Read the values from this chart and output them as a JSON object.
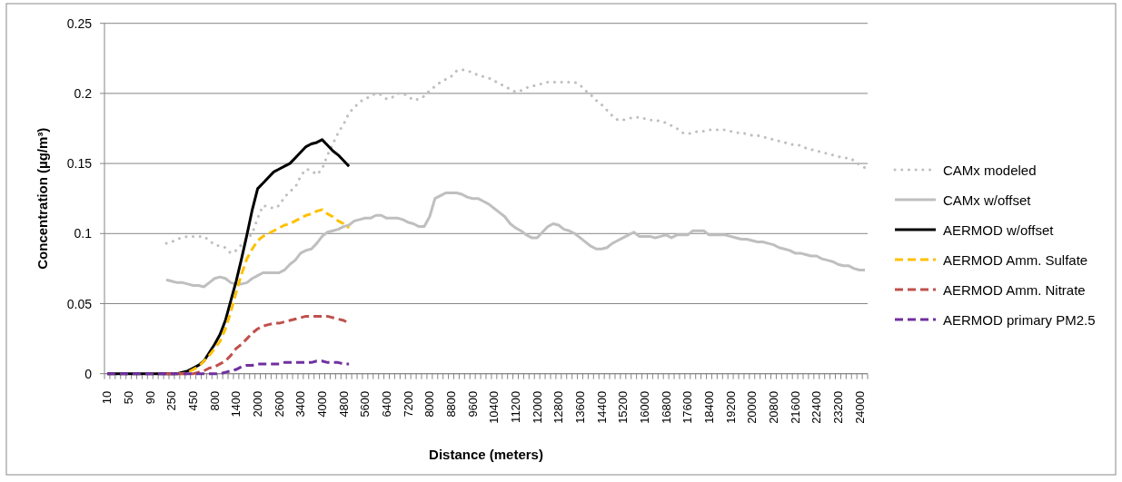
{
  "chart_data": {
    "type": "line",
    "xlabel": "Distance (meters)",
    "ylabel": "Concentration (µg/m³)",
    "categories": [
      "10",
      null,
      null,
      null,
      "50",
      null,
      null,
      null,
      "90",
      null,
      null,
      null,
      "250",
      null,
      null,
      null,
      "450",
      null,
      null,
      null,
      "800",
      null,
      null,
      null,
      "1400",
      null,
      null,
      null,
      "2000",
      null,
      null,
      null,
      "2600",
      null,
      null,
      null,
      "3400",
      null,
      null,
      null,
      "4000",
      null,
      null,
      null,
      "4800",
      null,
      null,
      null,
      "5600",
      null,
      null,
      null,
      "6400",
      null,
      null,
      null,
      "7200",
      null,
      null,
      null,
      "8000",
      null,
      null,
      null,
      "8800",
      null,
      null,
      null,
      "9600",
      null,
      null,
      null,
      "10400",
      null,
      null,
      null,
      "11200",
      null,
      null,
      null,
      "12000",
      null,
      null,
      null,
      "12800",
      null,
      null,
      null,
      "13600",
      null,
      null,
      null,
      "14400",
      null,
      null,
      null,
      "15200",
      null,
      null,
      null,
      "16000",
      null,
      null,
      null,
      "16800",
      null,
      null,
      null,
      "17600",
      null,
      null,
      null,
      "18400",
      null,
      null,
      null,
      "19200",
      null,
      null,
      null,
      "20000",
      null,
      null,
      null,
      "20800",
      null,
      null,
      null,
      "21600",
      null,
      null,
      null,
      "22400",
      null,
      null,
      null,
      "23200",
      null,
      null,
      null,
      "24000",
      null
    ],
    "ylim": [
      0,
      0.25
    ],
    "yticks": [
      0,
      0.05,
      0.1,
      0.15,
      0.2,
      0.25
    ],
    "grid": "y",
    "legend": "right",
    "series": [
      {
        "name": "CAMx modeled",
        "color": "#bfbfbf",
        "line_style": "dotted",
        "values": [
          null,
          null,
          null,
          null,
          null,
          null,
          null,
          null,
          null,
          null,
          null,
          0.093,
          0.094,
          0.096,
          0.097,
          0.098,
          0.098,
          0.098,
          0.098,
          0.095,
          0.092,
          0.091,
          0.09,
          0.086,
          0.088,
          0.092,
          0.096,
          0.1,
          0.111,
          0.12,
          0.119,
          0.118,
          0.12,
          0.126,
          0.13,
          0.133,
          0.141,
          0.146,
          0.145,
          0.142,
          0.146,
          0.156,
          0.164,
          0.172,
          0.178,
          0.186,
          0.19,
          0.194,
          0.196,
          0.198,
          0.2,
          0.199,
          0.196,
          0.197,
          0.2,
          0.2,
          0.198,
          0.195,
          0.196,
          0.198,
          0.202,
          0.205,
          0.208,
          0.21,
          0.212,
          0.216,
          0.217,
          0.216,
          0.215,
          0.213,
          0.212,
          0.211,
          0.209,
          0.207,
          0.205,
          0.203,
          0.201,
          0.202,
          0.204,
          0.205,
          0.206,
          0.207,
          0.208,
          0.208,
          0.208,
          0.208,
          0.208,
          0.208,
          0.206,
          0.202,
          0.199,
          0.195,
          0.192,
          0.188,
          0.184,
          0.181,
          0.181,
          0.182,
          0.183,
          0.183,
          0.182,
          0.181,
          0.181,
          0.18,
          0.179,
          0.177,
          0.175,
          0.172,
          0.171,
          0.172,
          0.173,
          0.173,
          0.174,
          0.174,
          0.174,
          0.174,
          0.173,
          0.172,
          0.172,
          0.171,
          0.17,
          0.17,
          0.169,
          0.168,
          0.167,
          0.166,
          0.165,
          0.164,
          0.163,
          0.163,
          0.161,
          0.16,
          0.159,
          0.158,
          0.157,
          0.156,
          0.155,
          0.154,
          0.154,
          0.152,
          0.149,
          0.147
        ]
      },
      {
        "name": "CAMx w/offset",
        "color": "#bfbfbf",
        "line_style": "solid",
        "values": [
          null,
          null,
          null,
          null,
          null,
          null,
          null,
          null,
          null,
          null,
          null,
          0.067,
          0.066,
          0.065,
          0.065,
          0.064,
          0.063,
          0.063,
          0.062,
          0.065,
          0.068,
          0.069,
          0.068,
          0.065,
          0.064,
          0.064,
          0.065,
          0.068,
          0.07,
          0.072,
          0.072,
          0.072,
          0.072,
          0.074,
          0.078,
          0.081,
          0.086,
          0.088,
          0.089,
          0.093,
          0.098,
          0.101,
          0.102,
          0.103,
          0.105,
          0.106,
          0.109,
          0.11,
          0.111,
          0.111,
          0.113,
          0.113,
          0.111,
          0.111,
          0.111,
          0.11,
          0.108,
          0.107,
          0.105,
          0.105,
          0.112,
          0.125,
          0.127,
          0.129,
          0.129,
          0.129,
          0.128,
          0.126,
          0.125,
          0.125,
          0.123,
          0.121,
          0.118,
          0.115,
          0.112,
          0.107,
          0.104,
          0.102,
          0.099,
          0.097,
          0.097,
          0.101,
          0.105,
          0.107,
          0.106,
          0.103,
          0.102,
          0.1,
          0.097,
          0.094,
          0.091,
          0.089,
          0.089,
          0.09,
          0.093,
          0.095,
          0.097,
          0.099,
          0.101,
          0.098,
          0.098,
          0.098,
          0.097,
          0.098,
          0.099,
          0.097,
          0.099,
          0.099,
          0.099,
          0.102,
          0.102,
          0.102,
          0.099,
          0.099,
          0.099,
          0.099,
          0.098,
          0.097,
          0.096,
          0.096,
          0.095,
          0.094,
          0.094,
          0.093,
          0.092,
          0.09,
          0.089,
          0.088,
          0.086,
          0.086,
          0.085,
          0.084,
          0.084,
          0.082,
          0.081,
          0.08,
          0.078,
          0.077,
          0.077,
          0.075,
          0.074,
          0.074
        ]
      },
      {
        "name": "AERMOD w/offset",
        "color": "#000000",
        "line_style": "solid",
        "values": [
          0,
          0,
          0,
          0,
          0,
          0,
          0,
          0,
          0,
          0,
          0,
          0,
          0,
          0,
          0.001,
          0.002,
          0.004,
          0.006,
          0.009,
          0.015,
          0.021,
          0.028,
          0.038,
          0.052,
          0.066,
          0.082,
          0.099,
          0.117,
          0.132,
          0.136,
          0.14,
          0.144,
          0.146,
          0.148,
          0.15,
          0.154,
          0.158,
          0.162,
          0.164,
          0.165,
          0.167,
          0.163,
          0.159,
          0.156,
          0.152,
          0.148,
          null,
          null,
          null,
          null,
          null,
          null,
          null,
          null,
          null,
          null,
          null,
          null,
          null,
          null,
          null,
          null,
          null,
          null,
          null,
          null,
          null,
          null,
          null,
          null,
          null,
          null,
          null,
          null,
          null,
          null,
          null,
          null,
          null,
          null,
          null,
          null,
          null,
          null,
          null,
          null,
          null,
          null,
          null,
          null,
          null,
          null,
          null,
          null,
          null,
          null,
          null,
          null,
          null,
          null,
          null,
          null,
          null,
          null,
          null,
          null,
          null,
          null,
          null,
          null,
          null,
          null,
          null,
          null,
          null,
          null,
          null,
          null,
          null,
          null,
          null,
          null,
          null,
          null,
          null,
          null,
          null,
          null,
          null,
          null,
          null,
          null,
          null,
          null,
          null,
          null,
          null,
          null,
          null,
          null,
          null,
          null
        ]
      },
      {
        "name": "AERMOD Amm. Sulfate",
        "color": "#ffc000",
        "line_style": "dashed",
        "values": [
          null,
          null,
          null,
          null,
          null,
          null,
          null,
          null,
          null,
          null,
          null,
          null,
          null,
          0,
          0,
          0.001,
          0.003,
          0.005,
          0.009,
          0.013,
          0.018,
          0.023,
          0.032,
          0.044,
          0.058,
          0.071,
          0.082,
          0.089,
          0.095,
          0.098,
          0.1,
          0.102,
          0.104,
          0.106,
          0.107,
          0.109,
          0.111,
          0.113,
          0.114,
          0.116,
          0.117,
          0.114,
          0.112,
          0.109,
          0.107,
          0.104,
          null,
          null,
          null,
          null,
          null,
          null,
          null,
          null,
          null,
          null,
          null,
          null,
          null,
          null,
          null,
          null,
          null,
          null,
          null,
          null,
          null,
          null,
          null,
          null,
          null,
          null,
          null,
          null,
          null,
          null,
          null,
          null,
          null,
          null,
          null,
          null,
          null,
          null,
          null,
          null,
          null,
          null,
          null,
          null,
          null,
          null,
          null,
          null,
          null,
          null,
          null,
          null,
          null,
          null,
          null,
          null,
          null,
          null,
          null,
          null,
          null,
          null,
          null,
          null,
          null,
          null,
          null,
          null,
          null,
          null,
          null,
          null,
          null,
          null,
          null,
          null,
          null,
          null,
          null,
          null,
          null,
          null,
          null,
          null,
          null,
          null,
          null,
          null,
          null,
          null,
          null,
          null,
          null,
          null,
          null,
          null
        ]
      },
      {
        "name": "AERMOD Amm. Nitrate",
        "color": "#c0504d",
        "line_style": "dashed",
        "values": [
          null,
          null,
          null,
          null,
          null,
          null,
          null,
          null,
          null,
          null,
          null,
          0,
          0,
          0,
          0,
          0,
          0,
          0.001,
          0.002,
          0.004,
          0.005,
          0.007,
          0.009,
          0.013,
          0.018,
          0.021,
          0.025,
          0.029,
          0.032,
          0.034,
          0.035,
          0.036,
          0.036,
          0.037,
          0.038,
          0.039,
          0.04,
          0.041,
          0.041,
          0.041,
          0.041,
          0.041,
          0.04,
          0.039,
          0.038,
          0.036,
          null,
          null,
          null,
          null,
          null,
          null,
          null,
          null,
          null,
          null,
          null,
          null,
          null,
          null,
          null,
          null,
          null,
          null,
          null,
          null,
          null,
          null,
          null,
          null,
          null,
          null,
          null,
          null,
          null,
          null,
          null,
          null,
          null,
          null,
          null,
          null,
          null,
          null,
          null,
          null,
          null,
          null,
          null,
          null,
          null,
          null,
          null,
          null,
          null,
          null,
          null,
          null,
          null,
          null,
          null,
          null,
          null,
          null,
          null,
          null,
          null,
          null,
          null,
          null,
          null,
          null,
          null,
          null,
          null,
          null,
          null,
          null,
          null,
          null,
          null,
          null,
          null,
          null,
          null,
          null,
          null,
          null,
          null,
          null,
          null,
          null,
          null,
          null,
          null,
          null,
          null,
          null,
          null,
          null,
          null,
          null
        ]
      },
      {
        "name": "AERMOD primary PM2.5",
        "color": "#7030a0",
        "line_style": "dashed",
        "values": [
          0,
          0,
          0,
          0,
          0,
          0,
          0,
          0,
          0,
          0,
          0,
          0,
          0,
          0,
          0,
          0,
          0,
          0,
          0,
          0,
          0,
          0,
          0.001,
          0.002,
          0.003,
          0.005,
          0.006,
          0.006,
          0.007,
          0.007,
          0.007,
          0.007,
          0.007,
          0.008,
          0.008,
          0.008,
          0.008,
          0.008,
          0.008,
          0.009,
          0.009,
          0.008,
          0.008,
          0.008,
          0.007,
          0.007,
          null,
          null,
          null,
          null,
          null,
          null,
          null,
          null,
          null,
          null,
          null,
          null,
          null,
          null,
          null,
          null,
          null,
          null,
          null,
          null,
          null,
          null,
          null,
          null,
          null,
          null,
          null,
          null,
          null,
          null,
          null,
          null,
          null,
          null,
          null,
          null,
          null,
          null,
          null,
          null,
          null,
          null,
          null,
          null,
          null,
          null,
          null,
          null,
          null,
          null,
          null,
          null,
          null,
          null,
          null,
          null,
          null,
          null,
          null,
          null,
          null,
          null,
          null,
          null,
          null,
          null,
          null,
          null,
          null,
          null,
          null,
          null,
          null,
          null,
          null,
          null,
          null,
          null,
          null,
          null,
          null,
          null,
          null,
          null,
          null,
          null,
          null,
          null,
          null,
          null,
          null,
          null,
          null,
          null,
          null,
          null
        ]
      }
    ]
  }
}
